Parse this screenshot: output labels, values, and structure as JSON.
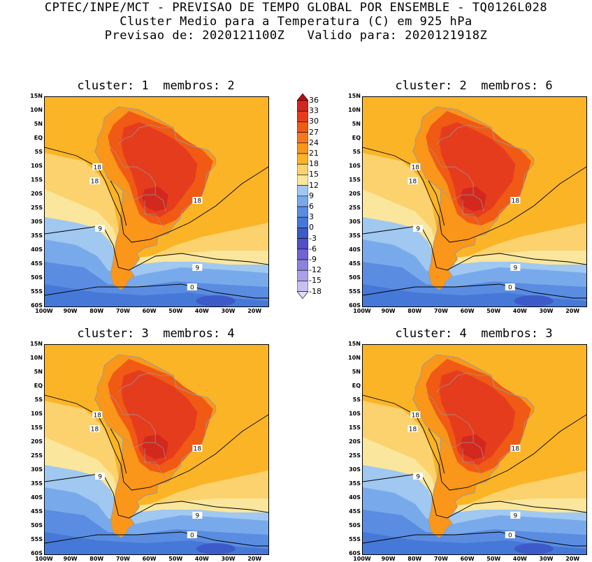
{
  "header": {
    "line1": "CPTEC/INPE/MCT - PREVISAO DE TEMPO GLOBAL POR ENSEMBLE - TQ0126L028",
    "line2": "Cluster Medio para a Temperatura (C) em 925 hPa",
    "line3": "Previsao de: 2020121100Z   Valido para: 2020121918Z"
  },
  "panels": [
    {
      "title": "cluster: 1  membros: 2",
      "contour_labels": [
        "18",
        "18",
        "18",
        "9",
        "9",
        "0"
      ]
    },
    {
      "title": "cluster: 2  membros: 6",
      "contour_labels": [
        "18",
        "18",
        "18",
        "9",
        "9",
        "0"
      ]
    },
    {
      "title": "cluster: 3  membros: 4",
      "contour_labels": [
        "18",
        "18",
        "18",
        "9",
        "9",
        "0"
      ]
    },
    {
      "title": "cluster: 4  membros: 3",
      "contour_labels": [
        "18",
        "18",
        "18",
        "9",
        "9",
        "0"
      ]
    }
  ],
  "lat_labels": [
    "15N",
    "10N",
    "5N",
    "EQ",
    "5S",
    "10S",
    "15S",
    "20S",
    "25S",
    "30S",
    "35S",
    "40S",
    "45S",
    "50S",
    "55S",
    "60S"
  ],
  "lon_labels": [
    "100W",
    "90W",
    "80W",
    "70W",
    "60W",
    "50W",
    "40W",
    "30W",
    "20W"
  ],
  "colorbar": {
    "labels": [
      "36",
      "33",
      "30",
      "27",
      "24",
      "21",
      "18",
      "15",
      "12",
      "9",
      "6",
      "3",
      "0",
      "-3",
      "-6",
      "-9",
      "-12",
      "-15",
      "-18"
    ],
    "colors": [
      "#b80a14",
      "#d2281e",
      "#e63c1e",
      "#f05a14",
      "#f5781e",
      "#fa9619",
      "#fbb426",
      "#fcd26e",
      "#fae69c",
      "#a0c8f0",
      "#78aaeb",
      "#5a8ce1",
      "#4678d7",
      "#3c5ac8",
      "#5050c8",
      "#6e64d2",
      "#8c82dc",
      "#aaa0e6",
      "#c8c0f0",
      "#e0dcf8"
    ]
  }
}
